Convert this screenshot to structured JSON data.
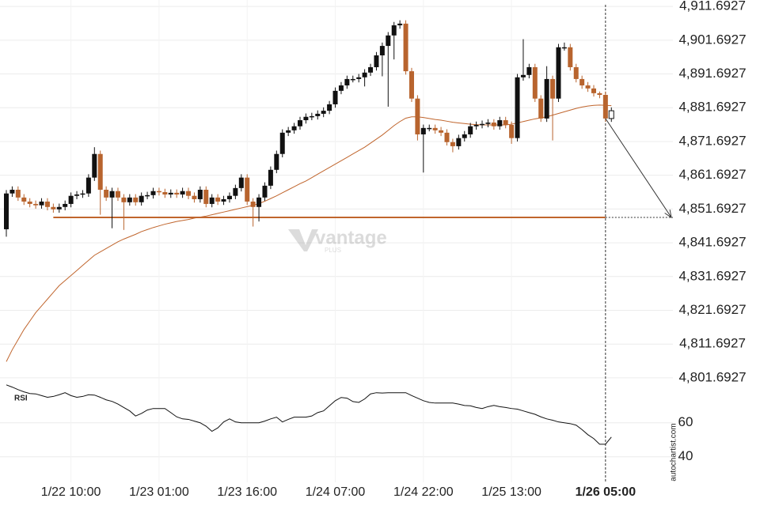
{
  "chart_data": {
    "type": "candlestick",
    "categories": [
      null,
      null,
      null,
      null,
      null,
      null,
      null,
      null,
      null,
      null,
      null,
      "1/22 10:00",
      null,
      null,
      null,
      null,
      null,
      null,
      null,
      null,
      null,
      null,
      null,
      null,
      null,
      null,
      "1/23 01:00",
      null,
      null,
      null,
      null,
      null,
      null,
      null,
      null,
      null,
      null,
      null,
      null,
      null,
      null,
      "1/23 16:00",
      null,
      null,
      null,
      null,
      null,
      null,
      null,
      null,
      null,
      null,
      null,
      null,
      null,
      null,
      "1/24 07:00",
      null,
      null,
      null,
      null,
      null,
      null,
      null,
      null,
      null,
      null,
      null,
      null,
      null,
      null,
      "1/24 22:00",
      null,
      null,
      null,
      null,
      null,
      null,
      null,
      null,
      null,
      null,
      null,
      null,
      null,
      null,
      "1/25 13:00",
      null,
      null,
      null,
      null,
      null,
      null,
      null,
      null,
      null,
      null,
      null,
      null,
      null,
      null,
      null,
      "1/26 05:00",
      null
    ],
    "open": [
      4845.7,
      4856.3,
      4857.4,
      4855.1,
      4853.9,
      4853.2,
      4852.8,
      4853.9,
      4852.3,
      4851.6,
      4852.3,
      4853.2,
      4855.6,
      4856.0,
      4856.3,
      4861.0,
      4868.0,
      4857.4,
      4855.1,
      4857.0,
      4855.1,
      4853.7,
      4855.1,
      4853.7,
      4855.6,
      4855.8,
      4857.0,
      4856.7,
      4856.0,
      4856.5,
      4856.0,
      4857.0,
      4855.6,
      4854.6,
      4857.4,
      4853.2,
      4855.1,
      4853.9,
      4854.6,
      4855.6,
      4857.9,
      4861.0,
      4853.9,
      4852.3,
      4855.1,
      4858.6,
      4863.3,
      4868.0,
      4874.3,
      4875.0,
      4876.2,
      4878.0,
      4879.0,
      4879.2,
      4879.9,
      4880.8,
      4882.7,
      4886.7,
      4888.3,
      4890.2,
      4890.2,
      4890.7,
      4892.1,
      4893.7,
      4897.2,
      4900.0,
      4903.1,
      4906.1,
      4906.6,
      4892.5,
      4884.4,
      4873.8,
      4875.7,
      4875.7,
      4875.0,
      4874.3,
      4871.5,
      4870.3,
      4872.7,
      4873.8,
      4876.2,
      4876.6,
      4876.9,
      4877.3,
      4876.2,
      4878.0,
      4876.6,
      4872.7,
      4890.7,
      4891.4,
      4893.7,
      4884.4,
      4878.5,
      4890.2,
      4884.4,
      4899.6,
      4899.6,
      4893.7,
      4890.2,
      4888.3,
      4887.4,
      4886.0,
      4885.5,
      4878.5
    ],
    "high": [
      4857.3,
      4858.4,
      4858.4,
      4856.1,
      4854.9,
      4854.2,
      4854.9,
      4854.9,
      4853.3,
      4853.3,
      4854.2,
      4856.6,
      4857.0,
      4857.3,
      4862.0,
      4870.0,
      4869.0,
      4858.4,
      4858.0,
      4858.0,
      4856.1,
      4856.1,
      4856.1,
      4856.6,
      4856.8,
      4858.0,
      4858.0,
      4857.7,
      4857.5,
      4857.5,
      4858.0,
      4858.0,
      4856.6,
      4858.4,
      4858.4,
      4856.1,
      4856.1,
      4855.6,
      4856.6,
      4858.9,
      4862.0,
      4862.0,
      4854.9,
      4856.1,
      4859.6,
      4864.3,
      4869.0,
      4875.3,
      4876.0,
      4877.2,
      4879.0,
      4880.0,
      4880.2,
      4880.9,
      4881.8,
      4883.7,
      4887.7,
      4889.3,
      4891.2,
      4891.2,
      4891.7,
      4893.1,
      4894.7,
      4898.2,
      4901.0,
      4904.1,
      4907.1,
      4907.6,
      4907.6,
      4893.5,
      4885.4,
      4876.7,
      4876.7,
      4876.7,
      4876.0,
      4875.3,
      4872.5,
      4873.7,
      4874.8,
      4877.2,
      4877.6,
      4877.9,
      4878.3,
      4878.3,
      4879.0,
      4879.0,
      4877.6,
      4891.7,
      4902.0,
      4894.7,
      4894.7,
      4885.4,
      4894.0,
      4891.2,
      4900.6,
      4901.0,
      4900.6,
      4894.7,
      4891.2,
      4889.3,
      4888.4,
      4886.5,
      4886.5,
      4881.8
    ],
    "low": [
      4843.5,
      4855.3,
      4854.1,
      4852.9,
      4852.2,
      4851.8,
      4851.8,
      4851.3,
      4850.6,
      4850.6,
      4851.3,
      4852.2,
      4854.6,
      4855.0,
      4855.3,
      4860.0,
      4850.0,
      4854.1,
      4846.0,
      4854.1,
      4845.5,
      4852.7,
      4852.7,
      4852.7,
      4854.6,
      4854.8,
      4855.7,
      4855.0,
      4855.0,
      4855.0,
      4855.0,
      4854.6,
      4853.6,
      4853.6,
      4852.2,
      4852.2,
      4852.9,
      4852.9,
      4853.6,
      4854.6,
      4856.9,
      4852.9,
      4846.5,
      4848.0,
      4854.1,
      4857.6,
      4862.3,
      4867.0,
      4873.3,
      4874.0,
      4875.2,
      4877.0,
      4878.0,
      4878.2,
      4878.9,
      4879.8,
      4881.7,
      4885.7,
      4887.3,
      4889.2,
      4889.2,
      4888.0,
      4891.1,
      4892.7,
      4891.0,
      4882.0,
      4896.0,
      4905.1,
      4891.5,
      4883.4,
      4872.0,
      4862.5,
      4874.7,
      4874.0,
      4873.3,
      4870.5,
      4868.5,
      4869.3,
      4871.7,
      4872.8,
      4875.2,
      4875.6,
      4875.9,
      4875.2,
      4875.2,
      4875.6,
      4871.0,
      4871.7,
      4889.7,
      4890.4,
      4883.4,
      4877.5,
      4877.5,
      4872.0,
      4883.4,
      4898.6,
      4892.7,
      4889.2,
      4887.3,
      4886.4,
      4885.0,
      4884.5,
      4877.5,
      4877.5
    ],
    "close": [
      4856.3,
      4857.4,
      4855.1,
      4853.9,
      4853.2,
      4852.8,
      4853.9,
      4852.3,
      4851.6,
      4852.3,
      4853.2,
      4855.6,
      4856.0,
      4856.3,
      4861.0,
      4868.0,
      4857.4,
      4855.1,
      4857.0,
      4855.1,
      4853.7,
      4855.1,
      4853.7,
      4855.6,
      4855.8,
      4857.0,
      4856.7,
      4856.0,
      4856.5,
      4856.0,
      4857.0,
      4855.6,
      4854.6,
      4857.4,
      4853.2,
      4855.1,
      4853.9,
      4854.6,
      4855.6,
      4857.9,
      4861.0,
      4853.9,
      4852.3,
      4855.1,
      4858.6,
      4863.3,
      4868.0,
      4874.3,
      4875.0,
      4876.2,
      4878.0,
      4879.0,
      4879.2,
      4879.9,
      4880.8,
      4882.7,
      4886.7,
      4888.3,
      4890.2,
      4890.2,
      4890.7,
      4892.1,
      4893.7,
      4897.2,
      4900.0,
      4903.1,
      4906.1,
      4906.6,
      4892.5,
      4884.4,
      4873.8,
      4875.7,
      4875.7,
      4875.0,
      4874.3,
      4871.5,
      4870.3,
      4872.7,
      4873.8,
      4876.2,
      4876.6,
      4876.9,
      4877.3,
      4876.2,
      4878.0,
      4876.6,
      4872.7,
      4890.7,
      4891.4,
      4893.7,
      4884.4,
      4878.5,
      4890.2,
      4884.4,
      4899.6,
      4899.6,
      4893.7,
      4890.2,
      4888.3,
      4887.4,
      4886.0,
      4885.5,
      4878.5,
      4880.8
    ],
    "up_color": "#111111",
    "down_color": "#b8642e",
    "hollow_last": true,
    "moving_average": {
      "color": "#c0652d",
      "values": [
        4806.5,
        4810,
        4813,
        4816,
        4818.5,
        4821,
        4823,
        4825,
        4827,
        4829,
        4830.5,
        4832,
        4833.5,
        4835,
        4836.5,
        4838,
        4839,
        4840,
        4841,
        4842,
        4842.8,
        4843.5,
        4844.2,
        4845,
        4845.6,
        4846.2,
        4846.7,
        4847.2,
        4847.6,
        4848,
        4848.3,
        4848.6,
        4849,
        4849.3,
        4849.6,
        4850,
        4850.4,
        4850.8,
        4851.2,
        4851.6,
        4852,
        4852.4,
        4852.8,
        4853.3,
        4854,
        4854.8,
        4855.6,
        4856.5,
        4857.4,
        4858.3,
        4859.2,
        4860,
        4861,
        4862,
        4863,
        4864,
        4865,
        4866,
        4867,
        4868,
        4869,
        4870,
        4871.2,
        4872.4,
        4873.6,
        4875,
        4876.4,
        4877.6,
        4878.6,
        4879,
        4879,
        4878.8,
        4878.5,
        4878.2,
        4878,
        4877.7,
        4877.4,
        4877.2,
        4877,
        4876.8,
        4876.7,
        4876.6,
        4876.6,
        4876.6,
        4876.6,
        4876.6,
        4876.8,
        4877.2,
        4877.6,
        4878,
        4878.4,
        4878.7,
        4879,
        4879.5,
        4880,
        4880.5,
        4881,
        4881.5,
        4881.9,
        4882.2,
        4882.4,
        4882.5,
        4882.4,
        4882.3
      ]
    },
    "level": {
      "value": 4849.2,
      "color": "#c0652d"
    },
    "ylim": [
      4800.5,
      4913.6
    ],
    "yticks": [
      {
        "value": 4801.6927,
        "label": "4,801.6927"
      },
      {
        "value": 4811.6927,
        "label": "4,811.6927"
      },
      {
        "value": 4821.6927,
        "label": "4,821.6927"
      },
      {
        "value": 4831.6927,
        "label": "4,831.6927"
      },
      {
        "value": 4841.6927,
        "label": "4,841.6927"
      },
      {
        "value": 4851.6927,
        "label": "4,851.6927"
      },
      {
        "value": 4861.6927,
        "label": "4,861.6927"
      },
      {
        "value": 4871.6927,
        "label": "4,871.6927"
      },
      {
        "value": 4881.6927,
        "label": "4,881.6927"
      },
      {
        "value": 4891.6927,
        "label": "4,891.6927"
      },
      {
        "value": 4901.6927,
        "label": "4,901.6927"
      },
      {
        "value": 4911.6927,
        "label": "4,911.6927"
      }
    ],
    "grid": true,
    "rsi": {
      "label": "RSI",
      "color": "#111111",
      "values": [
        82.3,
        81,
        79.5,
        78.2,
        77.2,
        77,
        76,
        75,
        75.5,
        76.5,
        77.7,
        76,
        75,
        75.5,
        76.5,
        76.3,
        75,
        73.5,
        72.6,
        71,
        69,
        67,
        64,
        65.5,
        67.5,
        68.4,
        68.4,
        68.4,
        66,
        63.5,
        62.3,
        62,
        61,
        60,
        58,
        55,
        57,
        60.5,
        62.3,
        60.5,
        60,
        60,
        60,
        60,
        61,
        62.3,
        63.3,
        60.5,
        62,
        63.3,
        63.3,
        63.3,
        64,
        66,
        67,
        70,
        73,
        74.9,
        74.5,
        72.5,
        72,
        74,
        77,
        77.7,
        77.5,
        77.7,
        77.7,
        77.7,
        77.7,
        76,
        74.5,
        73,
        72,
        71.6,
        71.6,
        71.6,
        71.6,
        71,
        70.2,
        70,
        69,
        68.4,
        69.5,
        70.2,
        69.5,
        69,
        68.4,
        68,
        67,
        66,
        65,
        63.5,
        62.3,
        61.5,
        60.5,
        60,
        59.5,
        58.6,
        56,
        53,
        50.7,
        47.4,
        47.4,
        51.6
      ],
      "ylim": [
        25,
        85
      ],
      "yticks": [
        40,
        60
      ]
    },
    "watermark": {
      "brand": "vantage",
      "sub": "PLUS"
    },
    "credit": "autochartist.com"
  }
}
